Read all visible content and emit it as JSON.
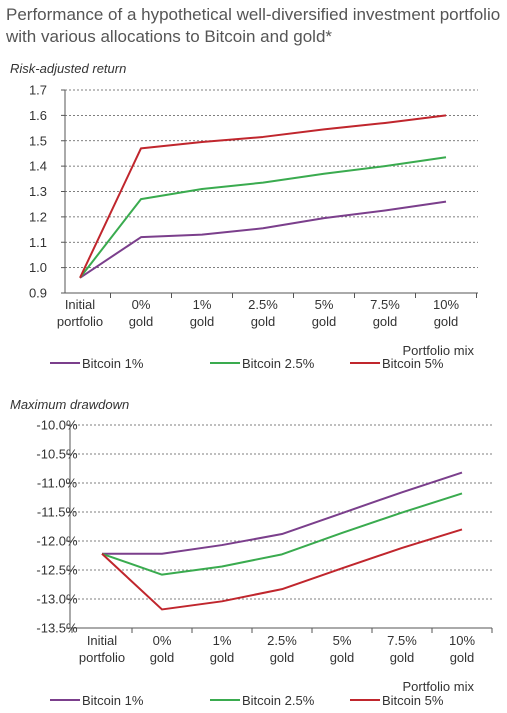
{
  "title": "Performance of a hypothetical well-diversified investment portfolio with various allocations to Bitcoin and gold*",
  "chart_data": [
    {
      "type": "line",
      "title": "Risk-adjusted return",
      "xlabel": "Portfolio mix",
      "categories": [
        [
          "Initial",
          "portfolio"
        ],
        [
          "0%",
          "gold"
        ],
        [
          "1%",
          "gold"
        ],
        [
          "2.5%",
          "gold"
        ],
        [
          "5%",
          "gold"
        ],
        [
          "7.5%",
          "gold"
        ],
        [
          "10%",
          "gold"
        ]
      ],
      "ylim": [
        0.9,
        1.7
      ],
      "yticks": [
        1.7,
        1.6,
        1.5,
        1.4,
        1.3,
        1.2,
        1.1,
        1.0,
        0.9
      ],
      "ytick_labels": [
        "1.7",
        "1.6",
        "1.5",
        "1.4",
        "1.3",
        "1.2",
        "1.1",
        "1.0",
        "0.9"
      ],
      "grid": true,
      "legend_position": "bottom",
      "series": [
        {
          "name": "Bitcoin 1%",
          "color": "#7b3f8c",
          "values": [
            0.96,
            1.12,
            1.13,
            1.155,
            1.195,
            1.225,
            1.26
          ]
        },
        {
          "name": "Bitcoin 2.5%",
          "color": "#3aab4f",
          "values": [
            0.96,
            1.27,
            1.31,
            1.335,
            1.37,
            1.4,
            1.435
          ]
        },
        {
          "name": "Bitcoin 5%",
          "color": "#c0262d",
          "values": [
            0.96,
            1.47,
            1.495,
            1.515,
            1.545,
            1.57,
            1.6
          ]
        }
      ]
    },
    {
      "type": "line",
      "title": "Maximum drawdown",
      "xlabel": "Portfolio mix",
      "categories": [
        [
          "Initial",
          "portfolio"
        ],
        [
          "0%",
          "gold"
        ],
        [
          "1%",
          "gold"
        ],
        [
          "2.5%",
          "gold"
        ],
        [
          "5%",
          "gold"
        ],
        [
          "7.5%",
          "gold"
        ],
        [
          "10%",
          "gold"
        ]
      ],
      "ylim": [
        -13.5,
        -10.0
      ],
      "yticks": [
        -10.0,
        -10.5,
        -11.0,
        -11.5,
        -12.0,
        -12.5,
        -13.0,
        -13.5
      ],
      "ytick_labels": [
        "-10.0%",
        "-10.5%",
        "-11.0%",
        "-11.5%",
        "-12.0%",
        "-12.5%",
        "-13.0%",
        "-13.5%"
      ],
      "grid": true,
      "legend_position": "bottom",
      "series": [
        {
          "name": "Bitcoin 1%",
          "color": "#7b3f8c",
          "values": [
            -12.22,
            -12.22,
            -12.07,
            -11.88,
            -11.52,
            -11.16,
            -10.82
          ]
        },
        {
          "name": "Bitcoin 2.5%",
          "color": "#3aab4f",
          "values": [
            -12.22,
            -12.58,
            -12.44,
            -12.23,
            -11.86,
            -11.51,
            -11.18
          ]
        },
        {
          "name": "Bitcoin 5%",
          "color": "#c0262d",
          "values": [
            -12.22,
            -13.18,
            -13.04,
            -12.83,
            -12.47,
            -12.12,
            -11.8
          ]
        }
      ]
    }
  ]
}
